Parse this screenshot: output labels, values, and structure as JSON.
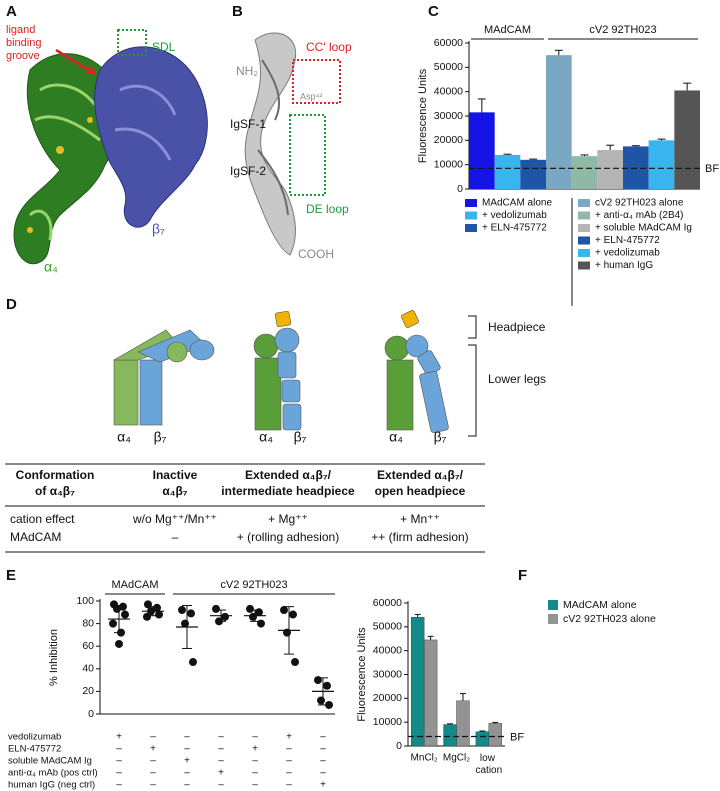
{
  "panel_labels": [
    "A",
    "B",
    "C",
    "D",
    "E",
    "F"
  ],
  "panel_a": {
    "groove_label": [
      "ligand",
      "binding",
      "groove"
    ],
    "sdl_label": "SDL",
    "beta_label": "β₇",
    "alpha_label": "α₄"
  },
  "panel_b": {
    "nh2": "NH₂",
    "cc_loop": "CC' loop",
    "asp": "Asp⁴²",
    "igsf1": "IgSF-1",
    "igsf2": "IgSF-2",
    "de_loop": "DE loop",
    "cooh": "COOH"
  },
  "panel_d": {
    "headpiece": "Headpiece",
    "lower_legs": "Lower legs",
    "subunits": [
      [
        "α₄",
        "β₇"
      ],
      [
        "α₄",
        "β₇"
      ],
      [
        "α₄",
        "β₇"
      ]
    ],
    "table": {
      "header": [
        [
          "Conformation",
          "of α₄β₇"
        ],
        [
          "Inactive",
          "α₄β₇"
        ],
        [
          "Extended α₄β₇/",
          "intermediate headpiece"
        ],
        [
          "Extended α₄β₇/",
          "open headpiece"
        ]
      ],
      "rows": [
        [
          "cation effect",
          "w/o Mg⁺⁺/Mn⁺⁺",
          "+ Mg⁺⁺",
          "+ Mn⁺⁺"
        ],
        [
          "MAdCAM",
          "–",
          "+ (rolling adhesion)",
          "++ (firm adhesion)"
        ]
      ]
    }
  },
  "chart_data": [
    {
      "type": "bar",
      "ylabel": "Fluorescence Units",
      "ylim": [
        0,
        60000
      ],
      "yticks": [
        0,
        10000,
        20000,
        30000,
        40000,
        50000,
        60000
      ],
      "groups": [
        {
          "name": "MAdCAM",
          "categories": [
            "MAdCAM alone",
            "+ vedolizumab",
            "+ ELN-475772"
          ],
          "values": [
            31500,
            14000,
            12000
          ],
          "errors": [
            5500,
            300,
            300
          ],
          "colors": [
            "#1414e6",
            "#38b4ee",
            "#1f55a5"
          ]
        },
        {
          "name": "cV2 92TH023",
          "categories": [
            "cV2 92TH023 alone",
            "+ anti-α₄ mAb (2B4)",
            "+ soluble MAdCAM Ig",
            "+ ELN-475772",
            "+ vedolizumab",
            "+ human IgG"
          ],
          "values": [
            55000,
            13500,
            16000,
            17500,
            20000,
            40500
          ],
          "errors": [
            2000,
            500,
            2000,
            300,
            500,
            3000
          ],
          "colors": [
            "#7aa8c2",
            "#8fb9a4",
            "#b4b4b4",
            "#1f55a5",
            "#38b4ee",
            "#555555"
          ]
        }
      ],
      "baseline": {
        "label": "BF",
        "value": 8500
      }
    },
    {
      "type": "scatter",
      "ylabel": "% Inhibition",
      "ylim": [
        0,
        100
      ],
      "yticks": [
        0,
        20,
        40,
        60,
        80,
        100
      ],
      "groups": [
        {
          "name": "MAdCAM",
          "columns": [
            {
              "points": [
                97,
                95,
                93,
                88,
                80,
                72,
                62
              ],
              "mean": 84,
              "sd": 12
            },
            {
              "points": [
                97,
                94,
                91,
                88,
                86
              ],
              "mean": 91,
              "sd": 4
            }
          ]
        },
        {
          "name": "cV2 92TH023",
          "columns": [
            {
              "points": [
                92,
                89,
                80,
                46
              ],
              "mean": 77,
              "sd": 19
            },
            {
              "points": [
                93,
                86,
                82
              ],
              "mean": 87,
              "sd": 5
            },
            {
              "points": [
                93,
                90,
                86,
                80
              ],
              "mean": 87,
              "sd": 5
            },
            {
              "points": [
                92,
                88,
                72,
                46
              ],
              "mean": 74,
              "sd": 21
            },
            {
              "points": [
                30,
                25,
                12,
                8
              ],
              "mean": 20,
              "sd": 12
            }
          ]
        }
      ],
      "conditions": [
        {
          "name": "vedolizumab",
          "marks": [
            "+",
            "–",
            "–",
            "–",
            "–",
            "+",
            "–"
          ]
        },
        {
          "name": "ELN-475772",
          "marks": [
            "–",
            "+",
            "–",
            "–",
            "+",
            "–",
            "–"
          ]
        },
        {
          "name": "soluble MAdCAM Ig",
          "marks": [
            "–",
            "–",
            "+",
            "–",
            "–",
            "–",
            "–"
          ]
        },
        {
          "name": "anti-α₄ mAb (pos ctrl)",
          "marks": [
            "–",
            "–",
            "–",
            "+",
            "–",
            "–",
            "–"
          ]
        },
        {
          "name": "human IgG (neg ctrl)",
          "marks": [
            "–",
            "–",
            "–",
            "–",
            "–",
            "–",
            "+"
          ]
        }
      ]
    },
    {
      "type": "bar",
      "ylabel": "Fluorescence Units",
      "ylim": [
        0,
        60000
      ],
      "yticks": [
        0,
        10000,
        20000,
        30000,
        40000,
        50000,
        60000
      ],
      "categories": [
        "MnCl₂",
        "MgCl₂",
        "low cation"
      ],
      "series": [
        {
          "name": "MAdCAM alone",
          "color": "#138a8a",
          "values": [
            54000,
            9000,
            6000
          ],
          "errors": [
            1200,
            300,
            300
          ]
        },
        {
          "name": "cV2 92TH023 alone",
          "color": "#939393",
          "values": [
            44500,
            19000,
            9500
          ],
          "errors": [
            1500,
            3000,
            400
          ]
        }
      ],
      "baseline": {
        "label": "BF",
        "value": 4000
      }
    }
  ]
}
